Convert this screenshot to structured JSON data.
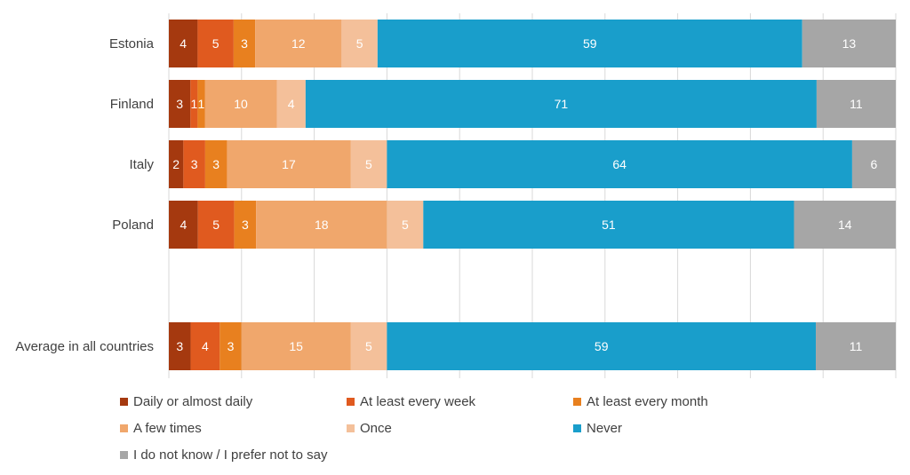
{
  "chart_data": {
    "type": "bar",
    "orientation": "horizontal",
    "stacked": true,
    "categories": [
      "Estonia",
      "Finland",
      "Italy",
      "Poland",
      "Average in all countries"
    ],
    "series": [
      {
        "name": "Daily or almost daily",
        "color": "#a5390f",
        "values": [
          4,
          3,
          2,
          4,
          3
        ]
      },
      {
        "name": "At least every week",
        "color": "#e05a1f",
        "values": [
          5,
          1,
          3,
          5,
          4
        ]
      },
      {
        "name": "At least every month",
        "color": "#e8801f",
        "values": [
          3,
          1,
          3,
          3,
          3
        ]
      },
      {
        "name": "A few times",
        "color": "#f0a76c",
        "values": [
          12,
          10,
          17,
          18,
          15
        ]
      },
      {
        "name": "Once",
        "color": "#f4c09a",
        "values": [
          5,
          4,
          5,
          5,
          5
        ]
      },
      {
        "name": "Never",
        "color": "#199ecb",
        "values": [
          59,
          71,
          64,
          51,
          59
        ]
      },
      {
        "name": "I do not know / I prefer not to say",
        "color": "#a6a6a6",
        "values": [
          13,
          11,
          6,
          14,
          11
        ]
      }
    ],
    "xlim": [
      0,
      100
    ],
    "grid": true,
    "legend_position": "bottom"
  }
}
